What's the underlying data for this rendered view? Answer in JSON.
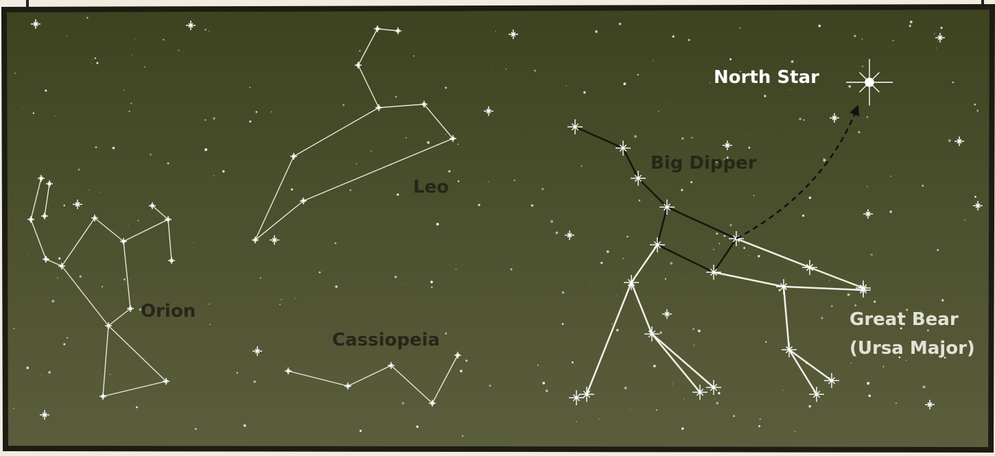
{
  "labels": {
    "north_star": "North Star",
    "big_dipper": "Big Dipper",
    "leo": "Leo",
    "orion": "Orion",
    "cassiopeia": "Cassiopeia",
    "great_bear": [
      "Great Bear",
      "(Ursa Major)"
    ]
  }
}
